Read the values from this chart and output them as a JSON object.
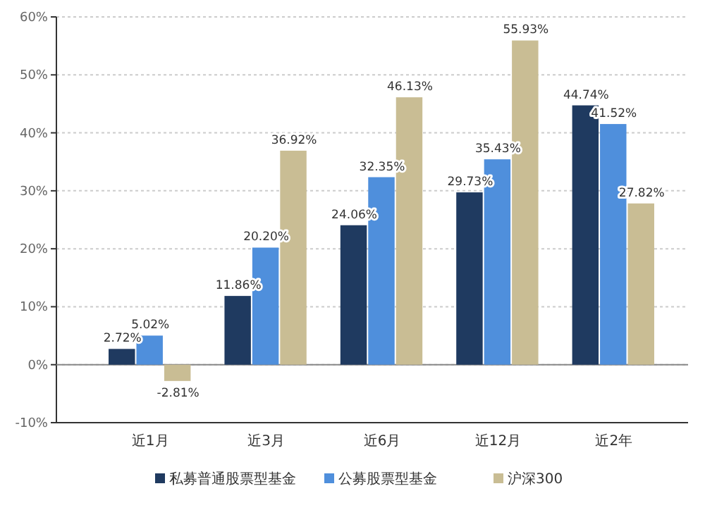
{
  "chart_data": {
    "type": "bar",
    "categories": [
      "近1月",
      "近3月",
      "近6月",
      "近12月",
      "近2年"
    ],
    "series": [
      {
        "name": "私募普通股票型基金",
        "color": "#1f3a60",
        "values": [
          2.72,
          11.86,
          24.06,
          29.73,
          44.74
        ],
        "value_labels": [
          "2.72%",
          "11.86%",
          "24.06%",
          "29.73%",
          "44.74%"
        ]
      },
      {
        "name": "公募股票型基金",
        "color": "#4f8fdc",
        "values": [
          5.02,
          20.2,
          32.35,
          35.43,
          41.52
        ],
        "value_labels": [
          "5.02%",
          "20.20%",
          "32.35%",
          "35.43%",
          "41.52%"
        ]
      },
      {
        "name": "沪深300",
        "color": "#c9bd94",
        "values": [
          -2.81,
          36.92,
          46.13,
          55.93,
          27.82
        ],
        "value_labels": [
          "-2.81%",
          "36.92%",
          "46.13%",
          "55.93%",
          "27.82%"
        ]
      }
    ],
    "ylim": [
      -10,
      60
    ],
    "yticks": [
      {
        "value": -10,
        "label": "-10%"
      },
      {
        "value": 0,
        "label": "0%"
      },
      {
        "value": 10,
        "label": "10%"
      },
      {
        "value": 20,
        "label": "20%"
      },
      {
        "value": 30,
        "label": "30%"
      },
      {
        "value": 40,
        "label": "40%"
      },
      {
        "value": 50,
        "label": "50%"
      },
      {
        "value": 60,
        "label": "60%"
      }
    ],
    "grid": "y",
    "legend": "bottom"
  }
}
